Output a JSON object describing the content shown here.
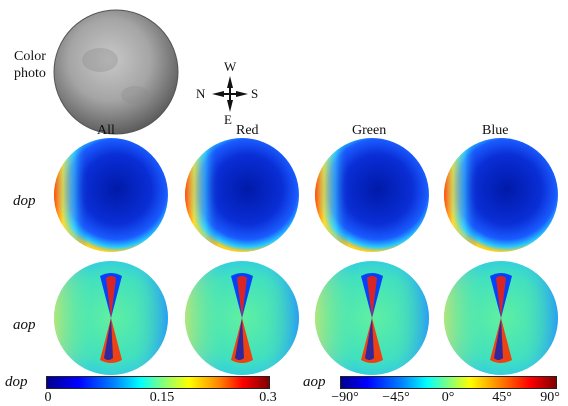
{
  "labels": {
    "color_photo_line1": "Color",
    "color_photo_line2": "photo",
    "col_all": "All",
    "col_red": "Red",
    "col_green": "Green",
    "col_blue": "Blue",
    "row_dop": "dop",
    "row_aop": "aop"
  },
  "compass": {
    "north": "N",
    "south": "S",
    "east": "E",
    "west": "W"
  },
  "colorbars": {
    "dop": {
      "label": "dop",
      "ticks": [
        "0",
        "0.15",
        "0.3"
      ],
      "range": [
        0,
        0.3
      ]
    },
    "aop": {
      "label": "aop",
      "ticks": [
        "−90°",
        "−45°",
        "0°",
        "45°",
        "90°"
      ],
      "range": [
        -90,
        90
      ]
    }
  },
  "colors": {
    "dop_background": "#0a2ed6",
    "aop_background": "#3fe0b8",
    "photo_gray": "#9a9a9a"
  }
}
